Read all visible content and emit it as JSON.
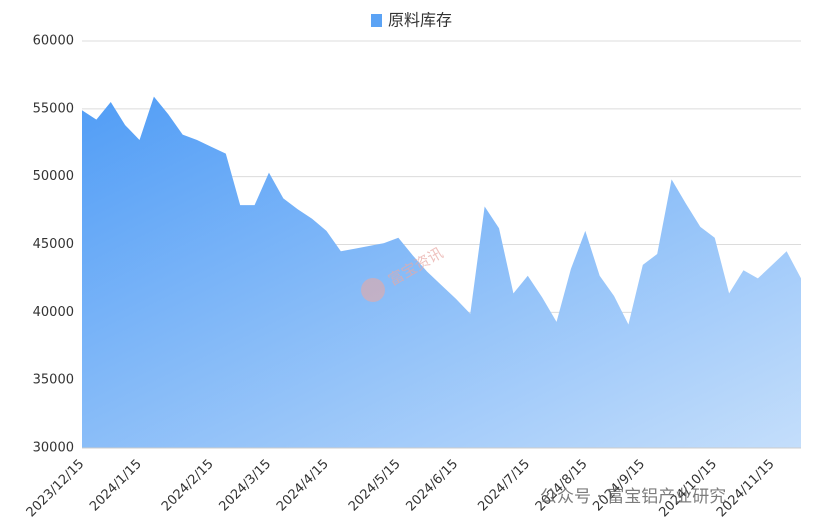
{
  "chart_data": {
    "type": "area",
    "legend": "原料库存",
    "categories": [
      "2023/12/15",
      null,
      null,
      null,
      "2024/1/15",
      null,
      null,
      null,
      null,
      "2024/2/15",
      null,
      null,
      null,
      "2024/3/15",
      null,
      null,
      null,
      "2024/4/15",
      null,
      null,
      null,
      null,
      "2024/5/15",
      null,
      null,
      null,
      "2024/6/15",
      null,
      null,
      null,
      null,
      "2024/7/15",
      null,
      null,
      null,
      "2024/8/15",
      null,
      null,
      null,
      "2024/9/15",
      null,
      null,
      null,
      null,
      "2024/10/15",
      null,
      null,
      null,
      "2024/11/15",
      null,
      null
    ],
    "series": [
      {
        "name": "原料库存",
        "color": "#5ba3f5",
        "values": [
          54900,
          54200,
          55500,
          53800,
          52700,
          55900,
          54600,
          53100,
          52700,
          52200,
          51700,
          47900,
          47900,
          50300,
          48400,
          47600,
          46900,
          46000,
          44500,
          44700,
          44900,
          45100,
          45500,
          44200,
          43000,
          42000,
          41000,
          39900,
          47800,
          46200,
          41400,
          42700,
          41100,
          39300,
          43200,
          46000,
          42700,
          41200,
          39100,
          43500,
          44300,
          49800,
          48000,
          46300,
          45500,
          41400,
          43100,
          42500,
          43500,
          44500,
          42500
        ]
      }
    ],
    "ylim": [
      30000,
      60000
    ],
    "yticks": [
      30000,
      35000,
      40000,
      45000,
      50000,
      55000,
      60000
    ],
    "grid": true,
    "watermarks": [
      "富宝资讯",
      "公众号 · 富宝铝产业研究"
    ]
  }
}
